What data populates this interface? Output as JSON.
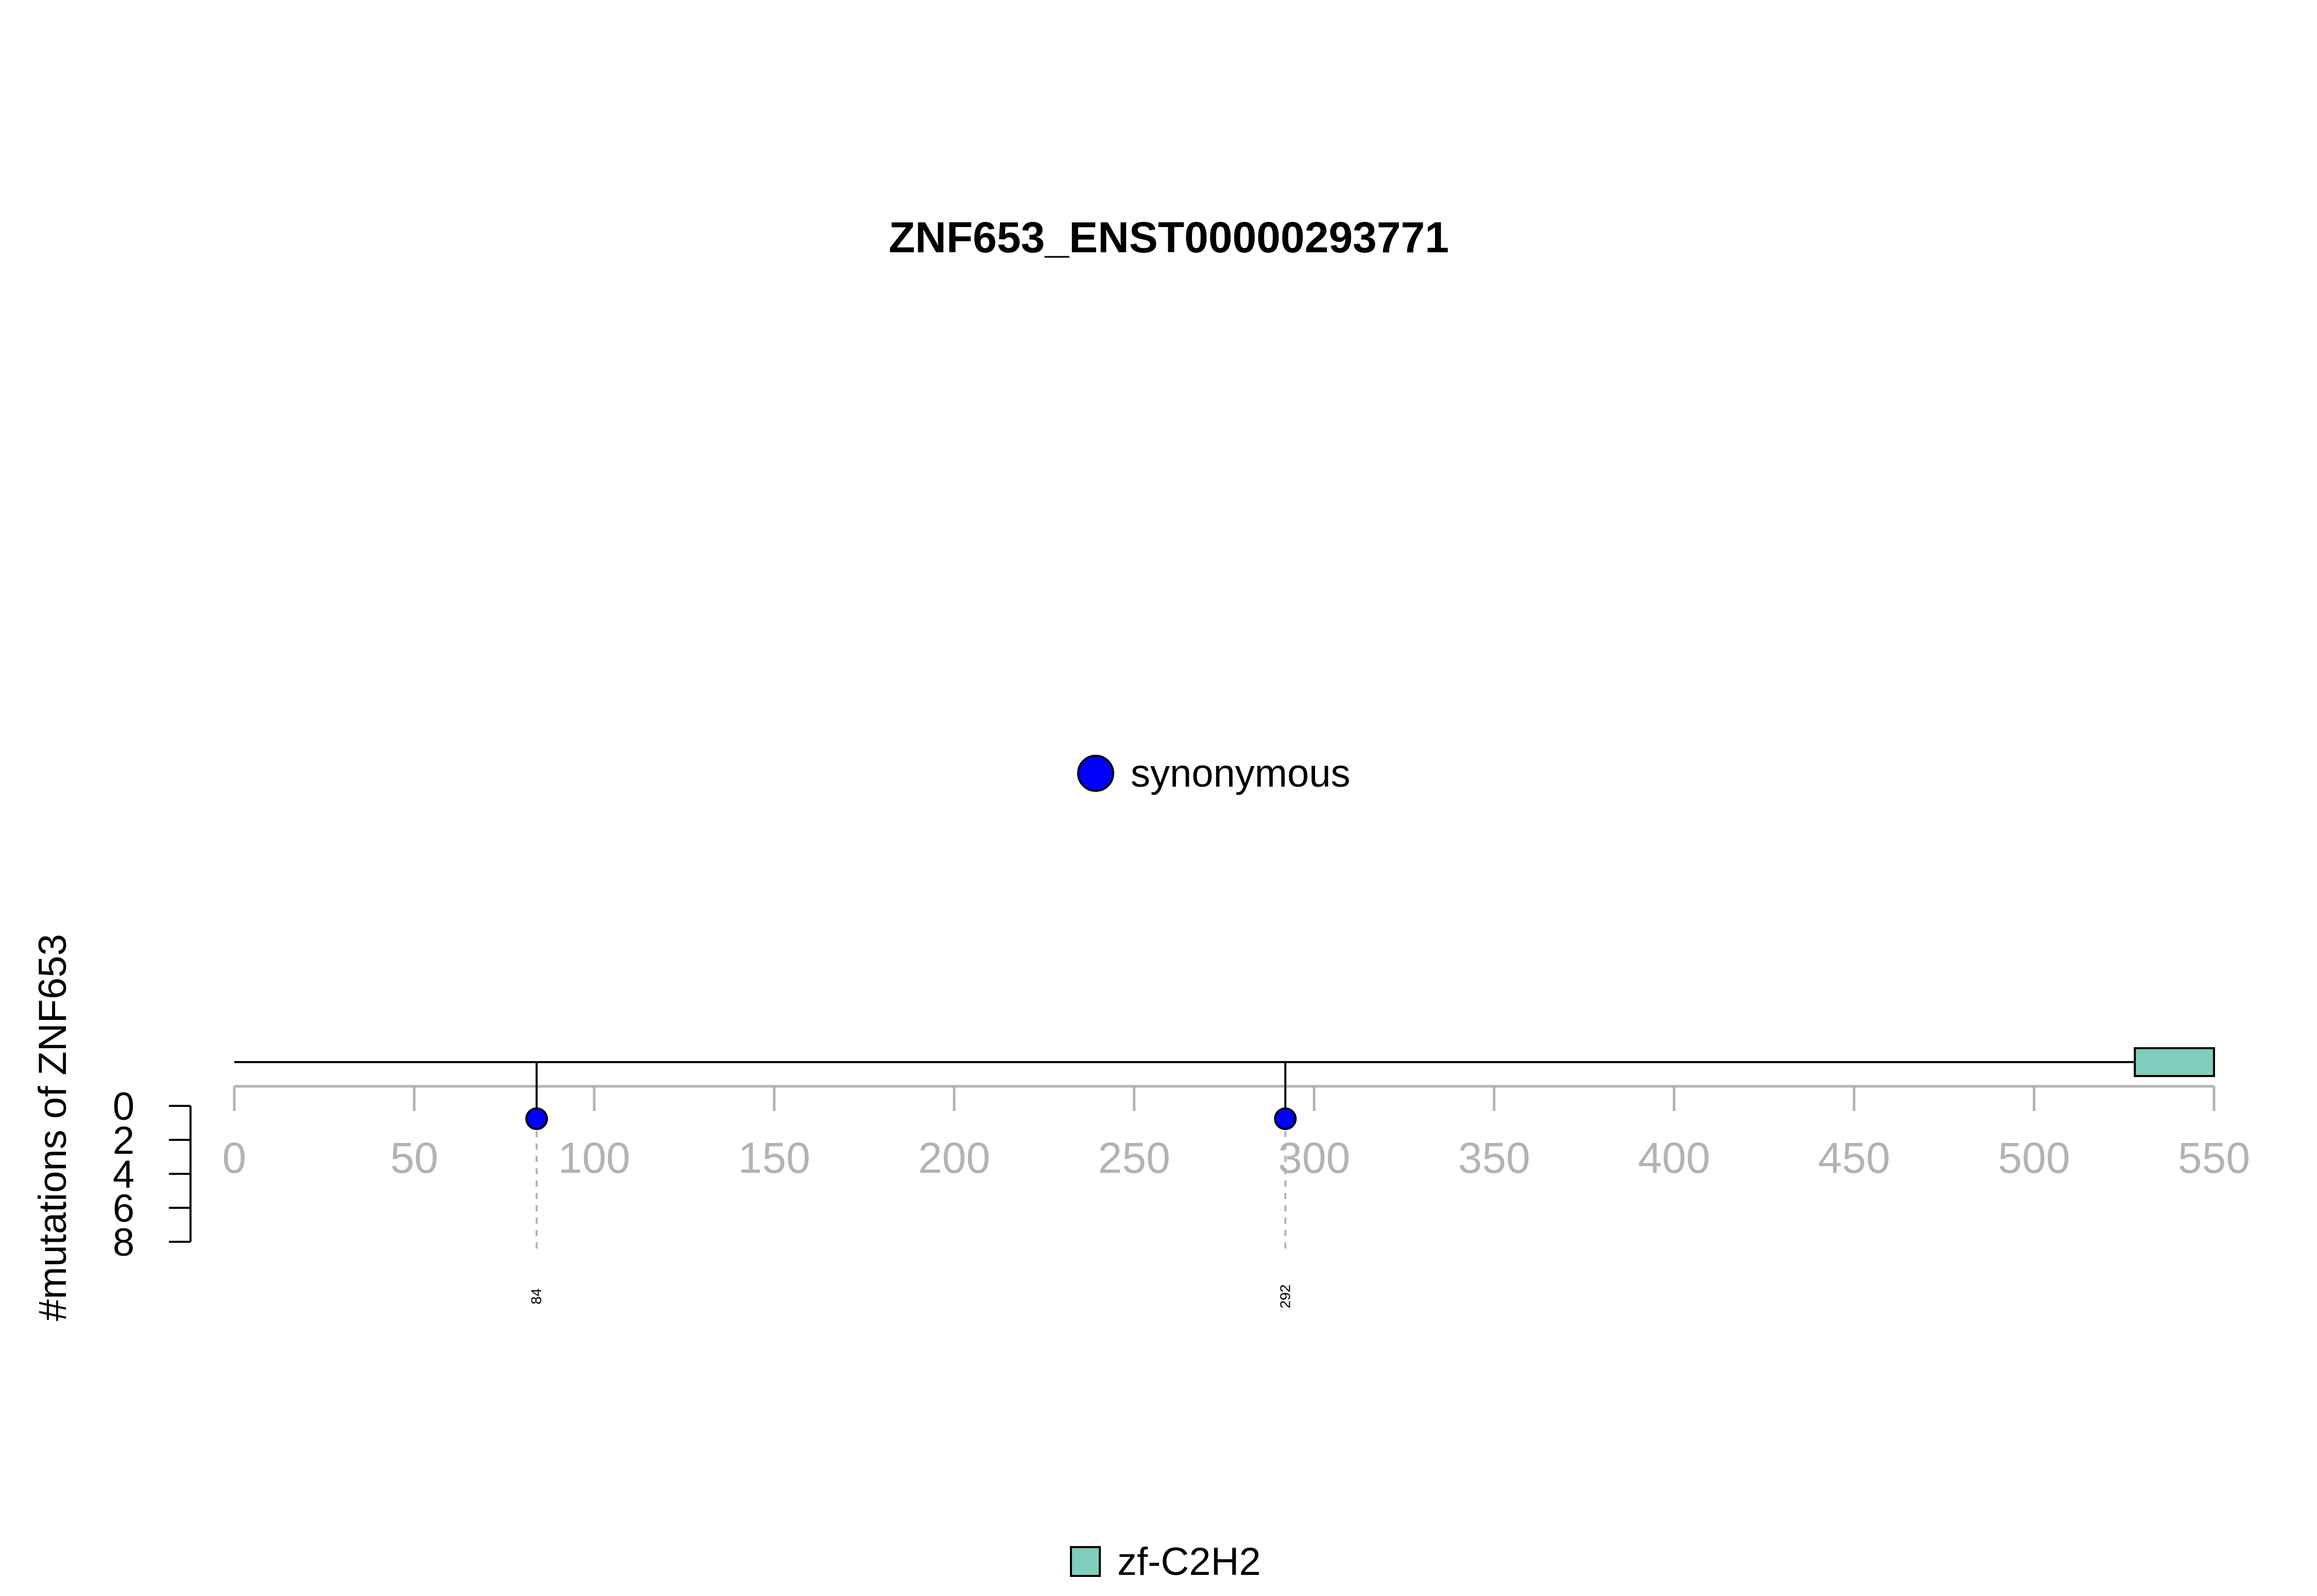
{
  "chart_data": {
    "type": "lollipop",
    "title": "ZNF653_ENST00000293771",
    "ylabel": "#mutations of ZNF653",
    "xlim": [
      0,
      550
    ],
    "x_ticks": [
      0,
      50,
      100,
      150,
      200,
      250,
      300,
      350,
      400,
      450,
      500,
      550
    ],
    "y_ticks": [
      0,
      2,
      4,
      6,
      8
    ],
    "ylim": [
      0,
      8
    ],
    "protein_length": 550,
    "mutations": [
      {
        "position": 84,
        "label": "84",
        "count": 1,
        "type": "synonymous"
      },
      {
        "position": 292,
        "label": "292",
        "count": 1,
        "type": "synonymous"
      }
    ],
    "domains": [
      {
        "name": "zf-C2H2",
        "start": 528,
        "end": 550
      }
    ],
    "legend_mutation": [
      {
        "label": "synonymous",
        "color": "#0000ff"
      }
    ],
    "legend_domain": [
      {
        "label": "zf-C2H2",
        "color": "#7fcdbb"
      }
    ],
    "colors": {
      "axis_gray": "#b3b3b3",
      "synonymous": "#0000ff",
      "zf-C2H2": "#7fcdbb"
    }
  }
}
